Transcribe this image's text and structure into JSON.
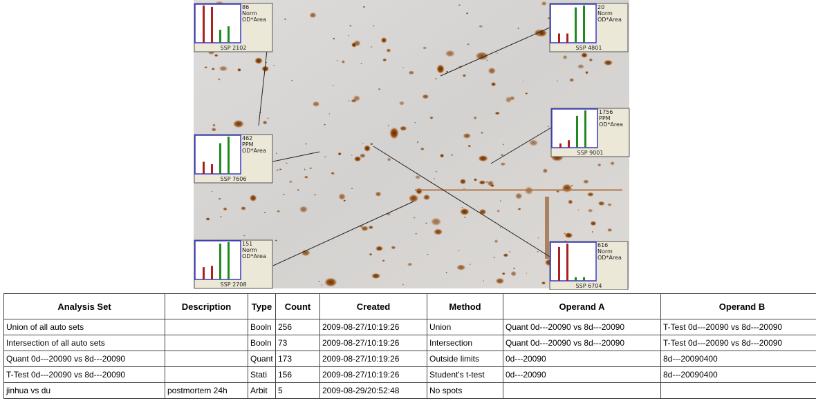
{
  "insets": [
    {
      "value": "86",
      "unit": "Norm",
      "measure": "OD*Area",
      "ssp": "SSP 2102",
      "max": 86,
      "bars": [
        {
          "color": "#a82020",
          "value": 86
        },
        {
          "color": "#a82020",
          "value": 83
        },
        {
          "color": "#208a20",
          "value": 30
        },
        {
          "color": "#208a20",
          "value": 38
        }
      ]
    },
    {
      "value": "20",
      "unit": "Norm",
      "measure": "OD*Area",
      "ssp": "SSP 4801",
      "max": 20,
      "bars": [
        {
          "color": "#a82020",
          "value": 5
        },
        {
          "color": "#a82020",
          "value": 5
        },
        {
          "color": "#208a20",
          "value": 19
        },
        {
          "color": "#208a20",
          "value": 20
        }
      ]
    },
    {
      "value": "1756",
      "unit": "PPM",
      "measure": "OD*Area",
      "ssp": "SSP 9001",
      "max": 1756,
      "bars": [
        {
          "color": "#a82020",
          "value": 200
        },
        {
          "color": "#a82020",
          "value": 350
        },
        {
          "color": "#208a20",
          "value": 1500
        },
        {
          "color": "#208a20",
          "value": 1756
        }
      ]
    },
    {
      "value": "462",
      "unit": "PPM",
      "measure": "OD*Area",
      "ssp": "SSP 7606",
      "max": 462,
      "bars": [
        {
          "color": "#a82020",
          "value": 150
        },
        {
          "color": "#a82020",
          "value": 120
        },
        {
          "color": "#208a20",
          "value": 380
        },
        {
          "color": "#208a20",
          "value": 462
        }
      ]
    },
    {
      "value": "151",
      "unit": "Norm",
      "measure": "OD*Area",
      "ssp": "SSP 2708",
      "max": 151,
      "bars": [
        {
          "color": "#a82020",
          "value": 50
        },
        {
          "color": "#a82020",
          "value": 55
        },
        {
          "color": "#208a20",
          "value": 145
        },
        {
          "color": "#208a20",
          "value": 151
        }
      ]
    },
    {
      "value": "616",
      "unit": "Norm",
      "measure": "OD*Area",
      "ssp": "SSP 6704",
      "max": 616,
      "bars": [
        {
          "color": "#a82020",
          "value": 560
        },
        {
          "color": "#a82020",
          "value": 616
        },
        {
          "color": "#208a20",
          "value": 60
        },
        {
          "color": "#208a20",
          "value": 60
        }
      ]
    }
  ],
  "table": {
    "header": [
      "Analysis Set",
      "Description",
      "Type",
      "Count",
      "Created",
      "Method",
      "Operand A",
      "Operand B"
    ],
    "rows": [
      [
        "Union of all auto sets",
        null,
        "Booln",
        "256",
        "2009-08-27/10:19:26",
        "Union",
        "Quant 0d---20090 vs 8d---20090",
        "T-Test 0d---20090 vs 8d---20090"
      ],
      [
        "Intersection of all auto sets",
        null,
        "Booln",
        "73",
        "2009-08-27/10:19:26",
        "Intersection",
        "Quant 0d---20090 vs 8d---20090",
        "T-Test 0d---20090 vs 8d---20090"
      ],
      [
        "Quant 0d---20090 vs 8d---20090",
        null,
        "Quant",
        "173",
        "2009-08-27/10:19:26",
        "Outside limits",
        "0d---20090",
        "8d---20090400"
      ],
      [
        "T-Test 0d---20090 vs 8d---20090",
        null,
        "Stati",
        "156",
        "2009-08-27/10:19:26",
        "Student's t-test",
        "0d---20090",
        "8d---20090400"
      ],
      [
        "jinhua vs du",
        "postmortem 24h",
        "Arbit",
        "5",
        "2009-08-29/20:52:48",
        "No spots",
        null,
        null
      ]
    ]
  }
}
